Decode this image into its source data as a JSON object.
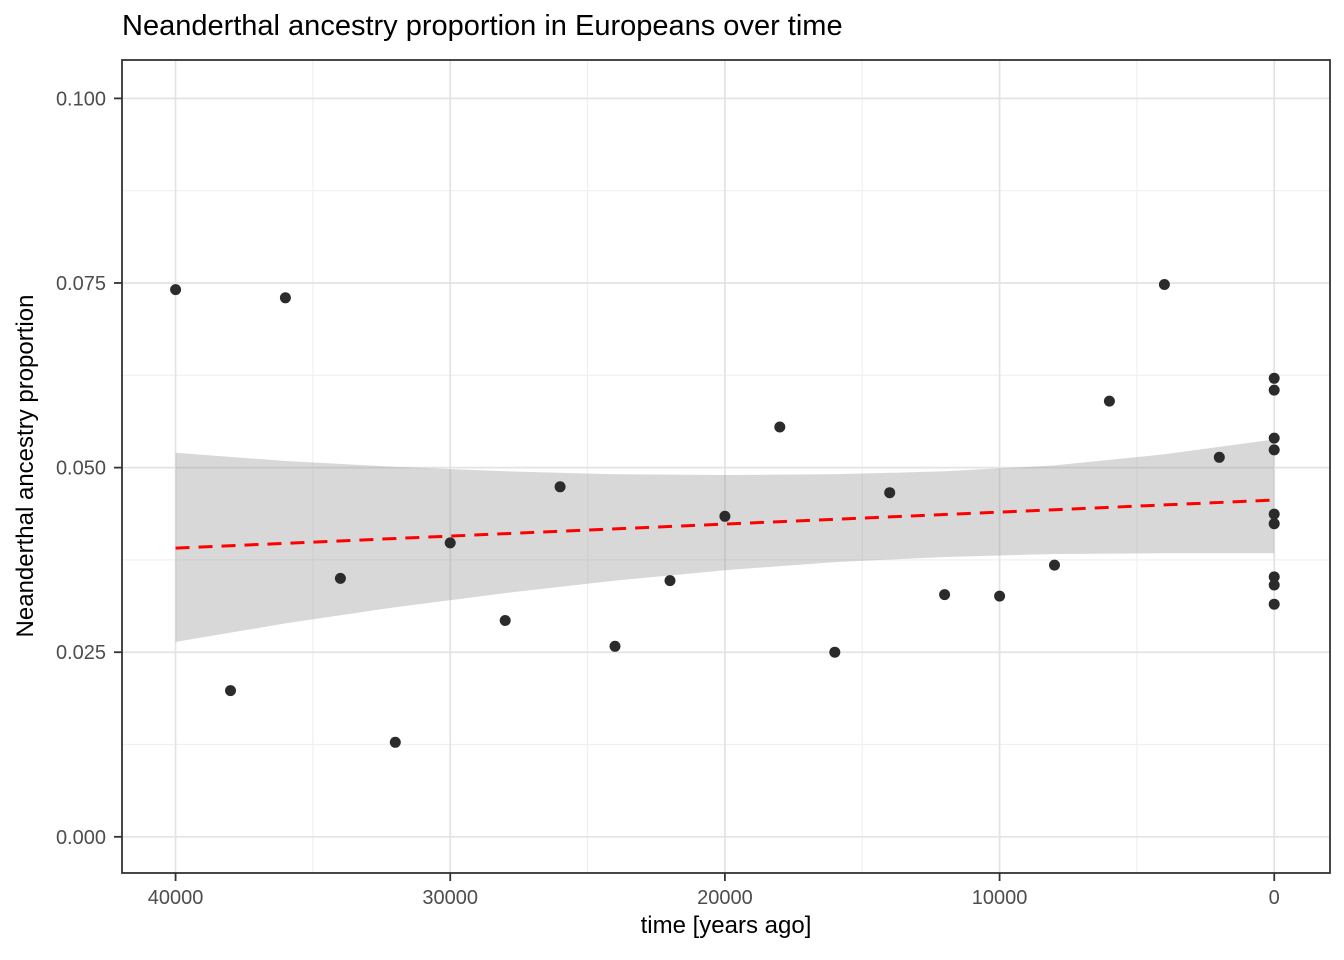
{
  "chart_data": {
    "type": "scatter",
    "title": "Neanderthal ancestry proportion in Europeans over time",
    "xlabel": "time [years ago]",
    "ylabel": "Neanderthal ancestry proportion",
    "x_axis_reversed": true,
    "x_range": [
      41950,
      -2030
    ],
    "y_range": [
      -0.0049,
      0.1052
    ],
    "x_ticks": [
      40000,
      30000,
      20000,
      10000,
      0
    ],
    "x_tick_labels": [
      "40000",
      "30000",
      "20000",
      "10000",
      "0"
    ],
    "x_minor_ticks": [
      35000,
      25000,
      15000,
      5000
    ],
    "y_ticks": [
      0.0,
      0.025,
      0.05,
      0.075,
      0.1
    ],
    "y_tick_labels": [
      "0.000",
      "0.025",
      "0.050",
      "0.075",
      "0.100"
    ],
    "y_minor_ticks": [
      0.0125,
      0.0375,
      0.0625,
      0.0875
    ],
    "grid": {
      "major": true,
      "minor": true
    },
    "legend": "none",
    "points": [
      [
        40000,
        0.0741
      ],
      [
        38000,
        0.0198
      ],
      [
        36000,
        0.073
      ],
      [
        34000,
        0.035
      ],
      [
        32000,
        0.0128
      ],
      [
        30000,
        0.0398
      ],
      [
        28000,
        0.0293
      ],
      [
        26000,
        0.0474
      ],
      [
        24000,
        0.0258
      ],
      [
        22000,
        0.0347
      ],
      [
        20000,
        0.0434
      ],
      [
        18000,
        0.0555
      ],
      [
        16000,
        0.025
      ],
      [
        14000,
        0.0466
      ],
      [
        12000,
        0.0328
      ],
      [
        10000,
        0.0326
      ],
      [
        8000,
        0.0368
      ],
      [
        6000,
        0.059
      ],
      [
        4000,
        0.0748
      ],
      [
        2000,
        0.0514
      ],
      [
        0,
        0.0621
      ],
      [
        0,
        0.0605
      ],
      [
        0,
        0.054
      ],
      [
        0,
        0.0524
      ],
      [
        0,
        0.0437
      ],
      [
        0,
        0.0424
      ],
      [
        0,
        0.0352
      ],
      [
        0,
        0.0341
      ],
      [
        0,
        0.0315
      ]
    ],
    "trend_line": {
      "style": "dashed",
      "x": [
        40000,
        0
      ],
      "y": [
        0.0391,
        0.0456
      ]
    },
    "confidence_band": {
      "x": [
        40000,
        36000,
        32000,
        28000,
        24000,
        20000,
        16000,
        12000,
        8000,
        4000,
        0
      ],
      "upper": [
        0.052,
        0.0509,
        0.0501,
        0.0495,
        0.0491,
        0.049,
        0.0491,
        0.0495,
        0.0503,
        0.0518,
        0.0538
      ],
      "lower": [
        0.0264,
        0.0289,
        0.0311,
        0.033,
        0.0347,
        0.0361,
        0.0372,
        0.0379,
        0.0383,
        0.0384,
        0.0384
      ]
    },
    "colors": {
      "point": "#2B2B2B",
      "trend": "#FF0000",
      "band": "#999999",
      "band_opacity": 0.38,
      "grid_major": "#E3E3E3",
      "grid_minor": "#F0F0F0",
      "panel_border": "#333333",
      "tick": "#333333",
      "tick_label": "#4D4D4D",
      "background": "#FFFFFF"
    }
  }
}
